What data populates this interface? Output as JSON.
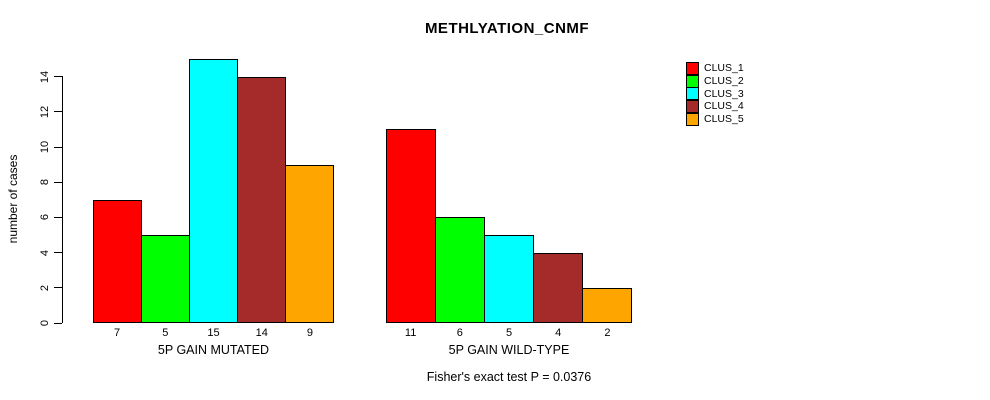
{
  "title": "METHLYATION_CNMF",
  "footer": "Fisher's exact test P = 0.0376",
  "chart_data": {
    "type": "bar",
    "title": "METHLYATION_CNMF",
    "xlabel": "",
    "ylabel": "number of cases",
    "ylim": [
      0,
      14
    ],
    "yticks": [
      0,
      2,
      4,
      6,
      8,
      10,
      12,
      14
    ],
    "grid": false,
    "legend_position": "right",
    "bar_value_labels_shown": true,
    "series": [
      "CLUS_1",
      "CLUS_2",
      "CLUS_3",
      "CLUS_4",
      "CLUS_5"
    ],
    "series_colors": [
      "#ff0000",
      "#00ff00",
      "#00ffff",
      "#a52a2a",
      "#ffa500"
    ],
    "groups": [
      {
        "label": "5P GAIN MUTATED",
        "values": [
          7,
          5,
          15,
          14,
          9
        ]
      },
      {
        "label": "5P GAIN WILD-TYPE",
        "values": [
          11,
          6,
          5,
          4,
          2
        ]
      }
    ],
    "annotation": "Fisher's exact test P = 0.0376"
  },
  "legend": {
    "items": [
      {
        "label": "CLUS_1",
        "color": "#ff0000"
      },
      {
        "label": "CLUS_2",
        "color": "#00ff00"
      },
      {
        "label": "CLUS_3",
        "color": "#00ffff"
      },
      {
        "label": "CLUS_4",
        "color": "#a52a2a"
      },
      {
        "label": "CLUS_5",
        "color": "#ffa500"
      }
    ]
  }
}
